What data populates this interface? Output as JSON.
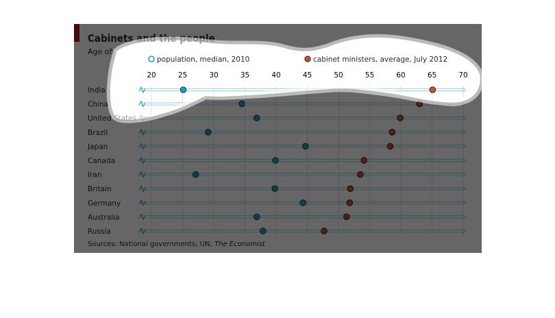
{
  "page": {
    "title": "Cabinets and the people",
    "subtitle": "Age of:",
    "source_prefix": "Sources: National governments; UN; ",
    "source_italic": "The Economist"
  },
  "colors": {
    "accent": "#c0131c",
    "population": "#2a9fb8",
    "cabinet": "#c0573a",
    "track": "#8ed3e6",
    "dim_overlay": "#000000",
    "highlight_fill": "#ffffff"
  },
  "chart_data": {
    "type": "dot",
    "title": "Cabinets and the people",
    "subtitle": "Age of:",
    "xlim": [
      20,
      70
    ],
    "xticks": [
      20,
      25,
      30,
      35,
      40,
      45,
      50,
      55,
      60,
      65,
      70
    ],
    "categories": [
      "India",
      "China",
      "United States",
      "Brazil",
      "Japan",
      "Canada",
      "Iran",
      "Britain",
      "Germany",
      "Australia",
      "Russia"
    ],
    "series": [
      {
        "name": "population, median, 2010",
        "key": "population",
        "values": [
          25.1,
          34.5,
          36.9,
          29.1,
          44.7,
          39.9,
          27.1,
          39.8,
          44.3,
          36.9,
          37.9
        ]
      },
      {
        "name": "cabinet ministers, average, July 2012",
        "key": "cabinet",
        "values": [
          65.1,
          63.0,
          59.9,
          58.6,
          58.3,
          54.1,
          53.5,
          51.9,
          51.8,
          51.3,
          47.7
        ]
      }
    ],
    "legend_position": "top",
    "grid": true,
    "axis_break_marker": true,
    "source": "Sources: National governments; UN; The Economist"
  }
}
